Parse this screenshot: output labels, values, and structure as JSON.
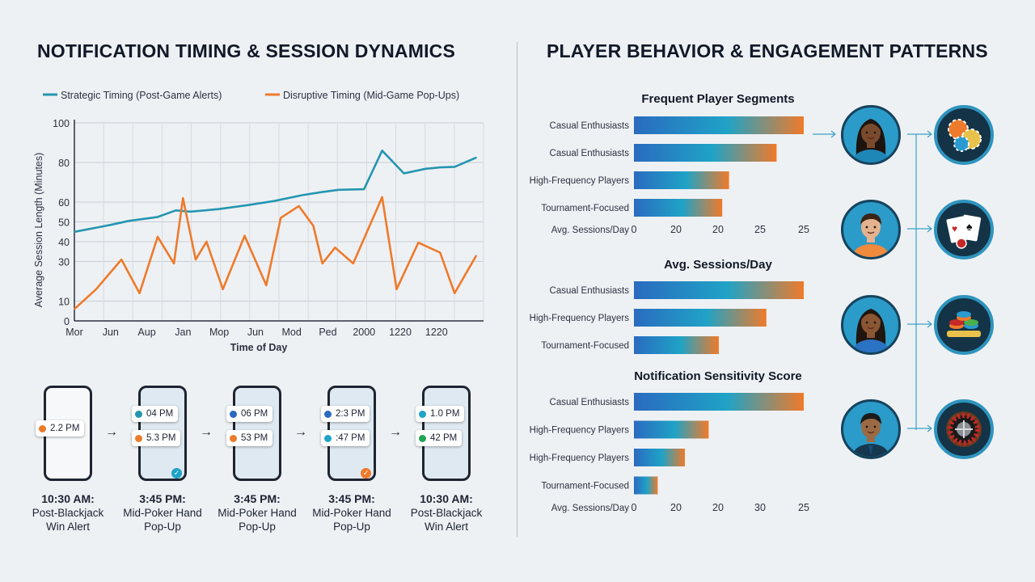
{
  "left_title": "NOTIFICATION TIMING & SESSION DYNAMICS",
  "right_title": "PLAYER BEHAVIOR & ENGAGEMENT PATTERNS",
  "colors": {
    "strategic": "#2596b0",
    "disruptive": "#ee7a2b",
    "bar_start": "#2a6bc0",
    "bar_mid": "#1fa3c6",
    "bar_end": "#f07a2a"
  },
  "chart_data": [
    {
      "type": "line",
      "xlabel": "Time of Day",
      "ylabel": "Average Session Length (Minutes)",
      "x_tick_labels": [
        "Mor",
        "Jun",
        "Aup",
        "Jan",
        "Mop",
        "Jun",
        "Mod",
        "Ped",
        "2000",
        "1220",
        "1220"
      ],
      "y_ticks": [
        0,
        10,
        30,
        40,
        50,
        60,
        80,
        100
      ],
      "y_tick_labels": [
        "0",
        "10",
        "30",
        "40",
        "50",
        "60",
        "80",
        "100"
      ],
      "grid": true,
      "legend_position": "top",
      "series": [
        {
          "name": "Strategic Timing (Post-Game Alerts)",
          "color": "#2596b0",
          "points": [
            [
              0,
              45
            ],
            [
              1,
              48.5
            ],
            [
              1.5,
              50.5
            ],
            [
              2.3,
              52.5
            ],
            [
              2.8,
              55.8
            ],
            [
              3.2,
              55.2
            ],
            [
              3.6,
              55.8
            ],
            [
              4.0,
              56.5
            ],
            [
              4.8,
              58.5
            ],
            [
              5.5,
              60.5
            ],
            [
              6.3,
              63.5
            ],
            [
              6.8,
              65
            ],
            [
              7.3,
              66.2
            ],
            [
              8.0,
              66.5
            ],
            [
              8.5,
              86
            ],
            [
              9.1,
              74.5
            ],
            [
              9.7,
              76.8
            ],
            [
              10.1,
              77.5
            ],
            [
              10.5,
              77.8
            ],
            [
              11.1,
              82.5
            ]
          ]
        },
        {
          "name": "Disruptive Timing (Mid-Game Pop-Ups)",
          "color": "#ee7a2b",
          "points": [
            [
              0,
              6
            ],
            [
              0.6,
              16
            ],
            [
              1.3,
              31
            ],
            [
              1.8,
              14
            ],
            [
              2.3,
              42.5
            ],
            [
              2.75,
              29
            ],
            [
              3.0,
              62
            ],
            [
              3.35,
              31
            ],
            [
              3.65,
              40
            ],
            [
              4.1,
              16
            ],
            [
              4.7,
              43
            ],
            [
              5.3,
              18
            ],
            [
              5.7,
              52
            ],
            [
              6.2,
              58
            ],
            [
              6.6,
              48
            ],
            [
              6.85,
              29
            ],
            [
              7.2,
              37
            ],
            [
              7.7,
              29
            ],
            [
              8.5,
              62.5
            ],
            [
              8.9,
              16
            ],
            [
              9.5,
              39.5
            ],
            [
              10.1,
              34.5
            ],
            [
              10.5,
              14
            ],
            [
              11.1,
              33
            ]
          ]
        }
      ]
    },
    {
      "type": "bar",
      "title": "Frequent Player Segments",
      "categories": [
        "Casual Enthusiasts",
        "Casual Enthusiasts",
        "High-Frequency Players",
        "Tournament-Focused"
      ],
      "values": [
        25,
        21,
        14,
        13
      ],
      "axis_caption": "Avg. Sessions/Day",
      "tick_labels": [
        "0",
        "20",
        "20",
        "25",
        "25"
      ]
    },
    {
      "type": "bar",
      "title": "Avg. Sessions/Day",
      "categories": [
        "Casual Enthusiasts",
        "High-Frequency Players",
        "Tournament-Focused"
      ],
      "values": [
        25,
        19.5,
        12.5
      ]
    },
    {
      "type": "bar",
      "title": "Notification Sensitivity Score",
      "categories": [
        "Casual Enthusiasts",
        "High-Frequency Players",
        "High-Frequency Players",
        "Tournament-Focused"
      ],
      "values": [
        25,
        11,
        7.5,
        3.5
      ],
      "axis_caption": "Avg. Sessions/Day",
      "tick_labels": [
        "0",
        "20",
        "20",
        "30",
        "25"
      ]
    }
  ],
  "phones": [
    {
      "notifications": [
        {
          "time": "2.2 PM",
          "color": "#ee7a2b"
        }
      ],
      "caption_time": "10:30 AM:",
      "caption_text": [
        "Post-Blackjack",
        "Win Alert"
      ]
    },
    {
      "notifications": [
        {
          "time": "04 PM",
          "color": "#2596b0"
        },
        {
          "time": "5.3 PM",
          "color": "#ee7a2b"
        }
      ],
      "badge": {
        "color": "#1fa3c6",
        "symbol": "✓"
      },
      "caption_time": "3:45 PM:",
      "caption_text": [
        "Mid-Poker Hand",
        "Pop-Up"
      ]
    },
    {
      "notifications": [
        {
          "time": "06 PM",
          "color": "#2a6bc0"
        },
        {
          "time": "53 PM",
          "color": "#ee7a2b"
        }
      ],
      "caption_time": "3:45 PM:",
      "caption_text": [
        "Mid-Poker Hand",
        "Pop-Up"
      ]
    },
    {
      "notifications": [
        {
          "time": "2:3 PM",
          "color": "#2a6bc0"
        },
        {
          "time": ":47 PM",
          "color": "#1fa3c6"
        }
      ],
      "badge": {
        "color": "#ee7a2b",
        "symbol": "✓"
      },
      "caption_time": "3:45 PM:",
      "caption_text": [
        "Mid-Poker Hand",
        "Pop-Up"
      ]
    },
    {
      "notifications": [
        {
          "time": "1.0 PM",
          "color": "#1fa3c6"
        },
        {
          "time": "42 PM",
          "color": "#23a455"
        }
      ],
      "caption_time": "10:30 AM:",
      "caption_text": [
        "Post-Blackjack",
        "Win Alert"
      ]
    }
  ],
  "avatars": [
    "avatar-woman-1",
    "avatar-man-1",
    "avatar-woman-2",
    "avatar-man-2"
  ],
  "game_icons": [
    "poker-chips-icon",
    "playing-cards-icon",
    "chip-stack-icon",
    "roulette-wheel-icon"
  ]
}
